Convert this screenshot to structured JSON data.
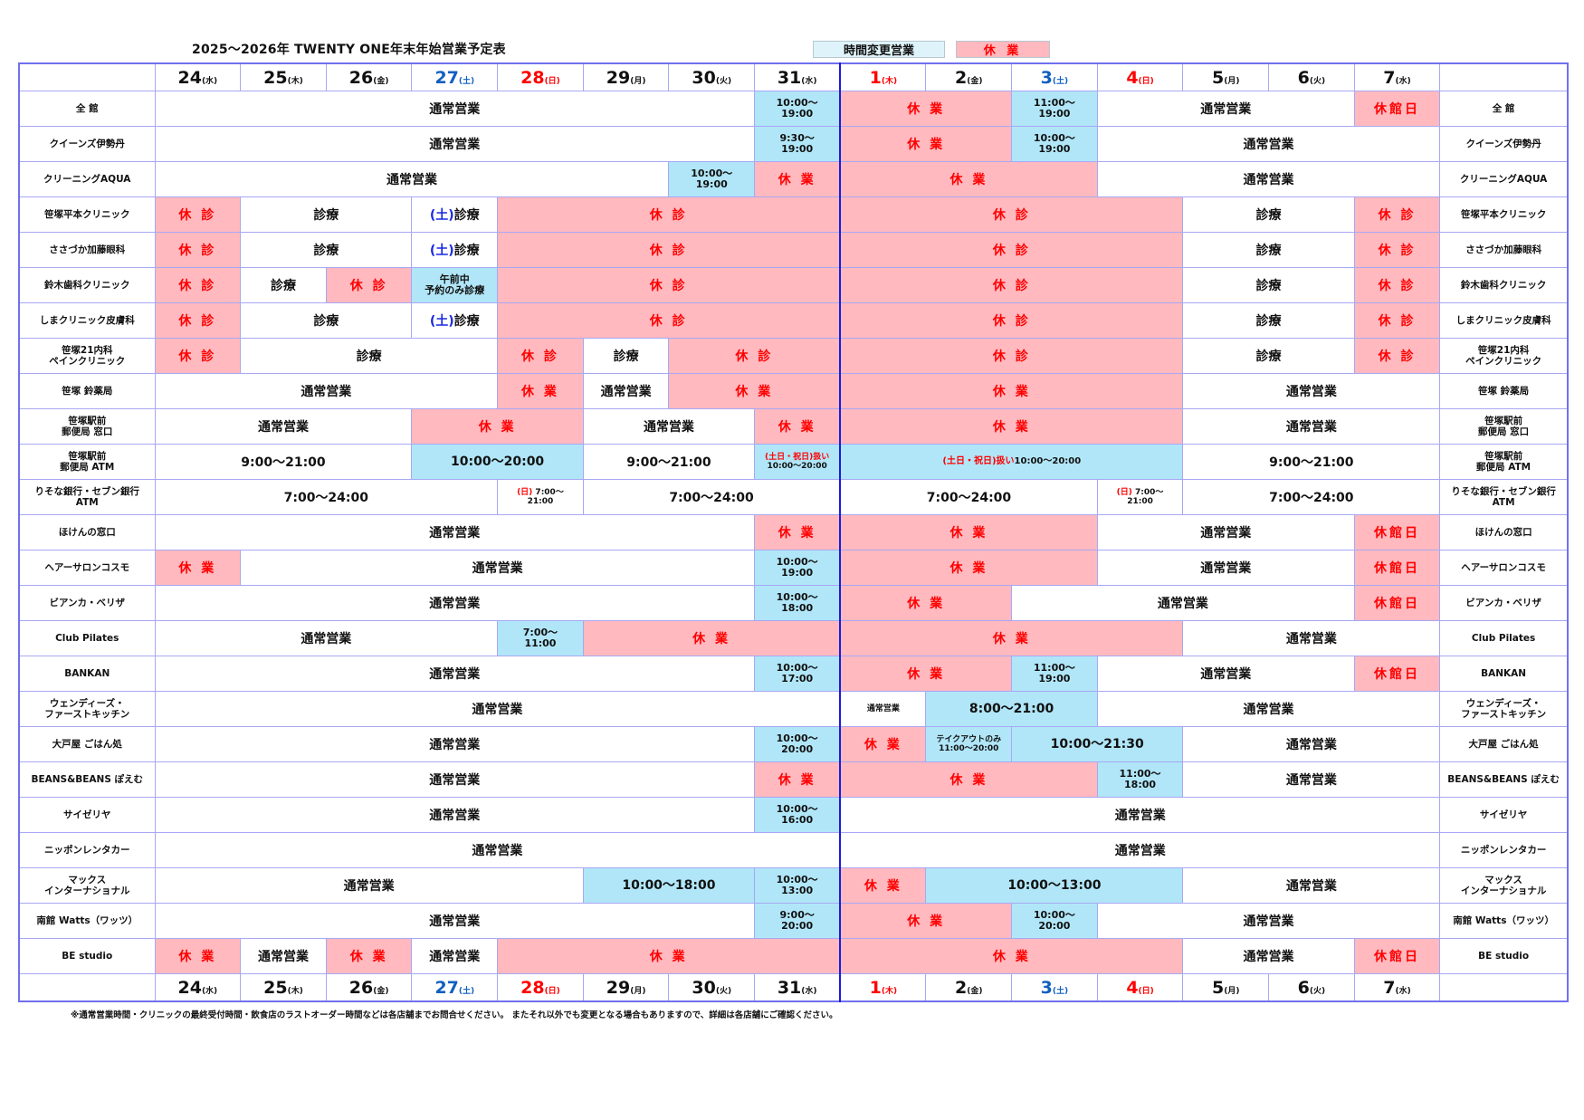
{
  "title": "2025〜2026年  TWENTY ONE年末年始営業予定表",
  "legend": {
    "changed_hours": "時間変更営業",
    "closed": "休 業"
  },
  "colors": {
    "closed_bg": "#ffb9bf",
    "changed_bg": "#b0e6f8",
    "closed_text": "#ff0000",
    "saturday": "#1060c0",
    "sunday_holiday": "#ff0000"
  },
  "days": [
    {
      "num": "24",
      "dow": "(水)",
      "color": "#111111"
    },
    {
      "num": "25",
      "dow": "(木)",
      "color": "#111111"
    },
    {
      "num": "26",
      "dow": "(金)",
      "color": "#111111"
    },
    {
      "num": "27",
      "dow": "(土)",
      "color": "#1060c0"
    },
    {
      "num": "28",
      "dow": "(日)",
      "color": "#ff0000"
    },
    {
      "num": "29",
      "dow": "(月)",
      "color": "#111111"
    },
    {
      "num": "30",
      "dow": "(火)",
      "color": "#111111"
    },
    {
      "num": "31",
      "dow": "(水)",
      "color": "#111111"
    },
    {
      "num": "1",
      "dow": "(木)",
      "color": "#ff0000"
    },
    {
      "num": "2",
      "dow": "(金)",
      "color": "#111111"
    },
    {
      "num": "3",
      "dow": "(土)",
      "color": "#1060c0"
    },
    {
      "num": "4",
      "dow": "(日)",
      "color": "#ff0000"
    },
    {
      "num": "5",
      "dow": "(月)",
      "color": "#111111"
    },
    {
      "num": "6",
      "dow": "(火)",
      "color": "#111111"
    },
    {
      "num": "7",
      "dow": "(水)",
      "color": "#111111"
    }
  ],
  "rows": [
    {
      "name": "全 館",
      "cells": [
        [
          7,
          "n",
          "通常営業"
        ],
        [
          1,
          "b",
          "10:00〜\n19:00"
        ],
        [
          2,
          "r",
          "休 業"
        ],
        [
          1,
          "b",
          "11:00〜\n19:00"
        ],
        [
          3,
          "n",
          "通常営業"
        ],
        [
          1,
          "r",
          "休館日"
        ]
      ]
    },
    {
      "name": "クイーンズ伊勢丹",
      "cells": [
        [
          7,
          "n",
          "通常営業"
        ],
        [
          1,
          "b",
          "9:30〜\n19:00"
        ],
        [
          2,
          "r",
          "休 業"
        ],
        [
          1,
          "b",
          "10:00〜\n19:00"
        ],
        [
          4,
          "n",
          "通常営業"
        ]
      ]
    },
    {
      "name": "クリーニングAQUA",
      "cells": [
        [
          6,
          "n",
          "通常営業"
        ],
        [
          1,
          "b",
          "10:00〜\n19:00"
        ],
        [
          1,
          "r",
          "休 業"
        ],
        [
          3,
          "r",
          "休 業"
        ],
        [
          4,
          "n",
          "通常営業"
        ]
      ]
    },
    {
      "name": "笹塚平本クリニック",
      "cells": [
        [
          1,
          "r",
          "休 診"
        ],
        [
          2,
          "n",
          "診療"
        ],
        [
          1,
          "n",
          "診療",
          "(土)"
        ],
        [
          4,
          "r",
          "休 診"
        ],
        [
          4,
          "r",
          "休 診"
        ],
        [
          2,
          "n",
          "診療"
        ],
        [
          1,
          "r",
          "休 診"
        ]
      ]
    },
    {
      "name": "ささづか加藤眼科",
      "cells": [
        [
          1,
          "r",
          "休 診"
        ],
        [
          2,
          "n",
          "診療"
        ],
        [
          1,
          "n",
          "診療",
          "(土)"
        ],
        [
          4,
          "r",
          "休 診"
        ],
        [
          4,
          "r",
          "休 診"
        ],
        [
          2,
          "n",
          "診療"
        ],
        [
          1,
          "r",
          "休 診"
        ]
      ]
    },
    {
      "name": "鈴木歯科クリニック",
      "cells": [
        [
          1,
          "r",
          "休 診"
        ],
        [
          1,
          "n",
          "診療"
        ],
        [
          1,
          "r",
          "休 診"
        ],
        [
          1,
          "b",
          "午前中\n予約のみ診療"
        ],
        [
          4,
          "r",
          "休 診"
        ],
        [
          4,
          "r",
          "休 診"
        ],
        [
          2,
          "n",
          "診療"
        ],
        [
          1,
          "r",
          "休 診"
        ]
      ]
    },
    {
      "name": "しまクリニック皮膚科",
      "cells": [
        [
          1,
          "r",
          "休 診"
        ],
        [
          2,
          "n",
          "診療"
        ],
        [
          1,
          "n",
          "診療",
          "(土)"
        ],
        [
          4,
          "r",
          "休 診"
        ],
        [
          4,
          "r",
          "休 診"
        ],
        [
          2,
          "n",
          "診療"
        ],
        [
          1,
          "r",
          "休 診"
        ]
      ]
    },
    {
      "name": "笹塚21内科\nペインクリニック",
      "cells": [
        [
          1,
          "r",
          "休 診"
        ],
        [
          3,
          "n",
          "診療"
        ],
        [
          1,
          "r",
          "休 診"
        ],
        [
          1,
          "n",
          "診療"
        ],
        [
          2,
          "r",
          "休 診"
        ],
        [
          4,
          "r",
          "休 診"
        ],
        [
          2,
          "n",
          "診療"
        ],
        [
          1,
          "r",
          "休 診"
        ]
      ]
    },
    {
      "name": "笹塚 鈴薬局",
      "cells": [
        [
          4,
          "n",
          "通常営業"
        ],
        [
          1,
          "r",
          "休 業"
        ],
        [
          1,
          "n",
          "通常営業"
        ],
        [
          2,
          "r",
          "休 業"
        ],
        [
          4,
          "r",
          "休 業"
        ],
        [
          3,
          "n",
          "通常営業"
        ]
      ]
    },
    {
      "name": "笹塚駅前\n郵便局  窓口",
      "cells": [
        [
          3,
          "n",
          "通常営業"
        ],
        [
          2,
          "r",
          "休 業"
        ],
        [
          2,
          "n",
          "通常営業"
        ],
        [
          1,
          "r",
          "休 業"
        ],
        [
          4,
          "r",
          "休 業"
        ],
        [
          3,
          "n",
          "通常営業"
        ]
      ]
    },
    {
      "name": "笹塚駅前\n郵便局  ATM",
      "cells": [
        [
          3,
          "n",
          "9:00〜21:00"
        ],
        [
          2,
          "b big",
          "10:00〜20:00"
        ],
        [
          2,
          "n",
          "9:00〜21:00"
        ],
        [
          1,
          "b sm",
          "\n10:00〜20:00",
          "(土日・祝日)扱い"
        ],
        [
          4,
          "b mid",
          "10:00〜20:00",
          "(土日・祝日)扱い"
        ],
        [
          3,
          "n",
          "9:00〜21:00"
        ]
      ]
    },
    {
      "name": "りそな銀行・セブン銀行\nATM",
      "cells": [
        [
          4,
          "n",
          "7:00〜24:00"
        ],
        [
          1,
          "n sm",
          " 7:00〜\n21:00",
          "(日)"
        ],
        [
          3,
          "n",
          "7:00〜24:00"
        ],
        [
          3,
          "n",
          "7:00〜24:00"
        ],
        [
          1,
          "n sm",
          " 7:00〜\n21:00",
          "(日)"
        ],
        [
          3,
          "n",
          "7:00〜24:00"
        ]
      ]
    },
    {
      "name": "ほけんの窓口",
      "cells": [
        [
          7,
          "n",
          "通常営業"
        ],
        [
          1,
          "r",
          "休 業"
        ],
        [
          3,
          "r",
          "休 業"
        ],
        [
          3,
          "n",
          "通常営業"
        ],
        [
          1,
          "r",
          "休館日"
        ]
      ]
    },
    {
      "name": "ヘアーサロンコスモ",
      "cells": [
        [
          1,
          "r",
          "休 業"
        ],
        [
          6,
          "n",
          "通常営業"
        ],
        [
          1,
          "b",
          "10:00〜\n19:00"
        ],
        [
          3,
          "r",
          "休 業"
        ],
        [
          3,
          "n",
          "通常営業"
        ],
        [
          1,
          "r",
          "休館日"
        ]
      ]
    },
    {
      "name": "ビアンカ・ベリザ",
      "cells": [
        [
          7,
          "n",
          "通常営業"
        ],
        [
          1,
          "b",
          "10:00〜\n18:00"
        ],
        [
          2,
          "r",
          "休 業"
        ],
        [
          4,
          "n",
          "通常営業"
        ],
        [
          1,
          "r",
          "休館日"
        ]
      ]
    },
    {
      "name": "Club Pilates",
      "cells": [
        [
          4,
          "n",
          "通常営業"
        ],
        [
          1,
          "b",
          "7:00〜\n11:00"
        ],
        [
          3,
          "r",
          "休 業"
        ],
        [
          4,
          "r",
          "休 業"
        ],
        [
          3,
          "n",
          "通常営業"
        ]
      ]
    },
    {
      "name": "BANKAN",
      "cells": [
        [
          7,
          "n",
          "通常営業"
        ],
        [
          1,
          "b",
          "10:00〜\n17:00"
        ],
        [
          2,
          "r",
          "休 業"
        ],
        [
          1,
          "b",
          "11:00〜\n19:00"
        ],
        [
          3,
          "n",
          "通常営業"
        ],
        [
          1,
          "r",
          "休館日"
        ]
      ]
    },
    {
      "name": "ウェンディーズ・\nファーストキッチン",
      "cells": [
        [
          8,
          "n",
          "通常営業"
        ],
        [
          1,
          "n sm",
          "通常営業"
        ],
        [
          2,
          "b big",
          "8:00〜21:00"
        ],
        [
          4,
          "n",
          "通常営業"
        ]
      ]
    },
    {
      "name": "大戸屋 ごはん処",
      "cells": [
        [
          7,
          "n",
          "通常営業"
        ],
        [
          1,
          "b",
          "10:00〜\n20:00"
        ],
        [
          1,
          "r",
          "休 業"
        ],
        [
          1,
          "b sm",
          "テイクアウトのみ\n11:00〜20:00"
        ],
        [
          2,
          "b big",
          "10:00〜21:30"
        ],
        [
          3,
          "n",
          "通常営業"
        ]
      ]
    },
    {
      "name": "BEANS&BEANS ぽえむ",
      "cells": [
        [
          7,
          "n",
          "通常営業"
        ],
        [
          1,
          "r",
          "休 業"
        ],
        [
          3,
          "r",
          "休 業"
        ],
        [
          1,
          "b",
          "11:00〜\n18:00"
        ],
        [
          3,
          "n",
          "通常営業"
        ]
      ]
    },
    {
      "name": "サイゼリヤ",
      "cells": [
        [
          7,
          "n",
          "通常営業"
        ],
        [
          1,
          "b",
          "10:00〜\n16:00"
        ],
        [
          7,
          "n",
          "通常営業"
        ]
      ]
    },
    {
      "name": "ニッポンレンタカー",
      "cells": [
        [
          8,
          "n",
          "通常営業"
        ],
        [
          7,
          "n",
          "通常営業"
        ]
      ]
    },
    {
      "name": "マックス\nインターナショナル",
      "cells": [
        [
          5,
          "n",
          "通常営業"
        ],
        [
          2,
          "b big",
          "10:00〜18:00"
        ],
        [
          1,
          "b",
          "10:00〜\n13:00"
        ],
        [
          1,
          "r",
          "休 業"
        ],
        [
          3,
          "b big",
          "10:00〜13:00"
        ],
        [
          3,
          "n",
          "通常営業"
        ]
      ]
    },
    {
      "name": "南館  Watts（ワッツ）",
      "cells": [
        [
          7,
          "n",
          "通常営業"
        ],
        [
          1,
          "b",
          "9:00〜\n20:00"
        ],
        [
          2,
          "r",
          "休 業"
        ],
        [
          1,
          "b",
          "10:00〜\n20:00"
        ],
        [
          4,
          "n",
          "通常営業"
        ]
      ]
    },
    {
      "name": "BE studio",
      "cells": [
        [
          1,
          "r",
          "休 業"
        ],
        [
          1,
          "n",
          "通常営業"
        ],
        [
          1,
          "r",
          "休 業"
        ],
        [
          1,
          "n",
          "通常営業"
        ],
        [
          4,
          "r",
          "休 業"
        ],
        [
          4,
          "r",
          "休 業"
        ],
        [
          2,
          "n",
          "通常営業"
        ],
        [
          1,
          "r",
          "休館日"
        ]
      ]
    }
  ],
  "footnote": "※通常営業時間・クリニックの最終受付時間・飲食店のラストオーダー時間などは各店舗までお問合せください。 またそれ以外でも変更となる場合もありますので、詳細は各店舗にご確認ください。"
}
